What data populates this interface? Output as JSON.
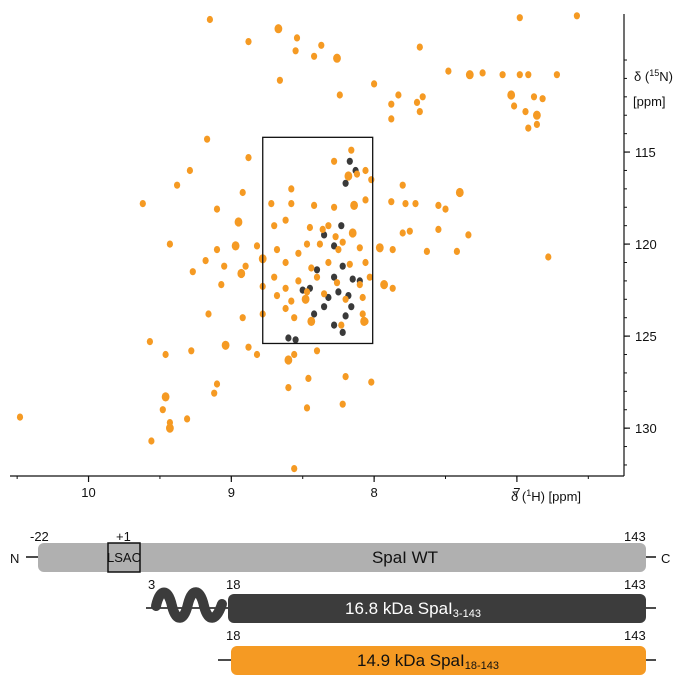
{
  "chart_data": {
    "type": "scatter",
    "title": "",
    "xlabel": "δ (¹H)  [ppm]",
    "ylabel": "δ (¹⁵N) [ppm]",
    "xlim": [
      10.55,
      6.25
    ],
    "ylim": [
      107.5,
      132.6
    ],
    "x_ticks": [
      "10",
      "9",
      "8",
      "7"
    ],
    "y_ticks": [
      "115",
      "120",
      "125",
      "130"
    ],
    "y_reversed": true,
    "x_reversed": true,
    "grid": false,
    "colors": {
      "orange": "#f59a23",
      "dark": "#3a3a3a"
    },
    "highlight_box": {
      "x": [
        8.78,
        8.01
      ],
      "y": [
        114.2,
        125.4
      ]
    },
    "series": [
      {
        "color": "#3a3a3a",
        "points": [
          [
            8.6,
            125.1
          ],
          [
            8.55,
            125.2
          ],
          [
            8.28,
            124.4
          ],
          [
            8.22,
            124.8
          ],
          [
            8.32,
            122.9
          ],
          [
            8.25,
            122.6
          ],
          [
            8.18,
            122.8
          ],
          [
            8.35,
            123.4
          ],
          [
            8.2,
            123.9
          ],
          [
            8.45,
            122.4
          ],
          [
            8.28,
            121.8
          ],
          [
            8.15,
            121.9
          ],
          [
            8.4,
            121.4
          ],
          [
            8.22,
            121.2
          ],
          [
            8.13,
            116.0
          ],
          [
            8.17,
            115.5
          ],
          [
            8.2,
            116.7
          ],
          [
            8.28,
            120.1
          ],
          [
            8.35,
            119.5
          ],
          [
            8.23,
            119.0
          ],
          [
            8.5,
            122.5
          ],
          [
            8.1,
            122.0
          ],
          [
            8.16,
            123.4
          ],
          [
            8.42,
            123.8
          ]
        ]
      },
      {
        "color": "#f59a23",
        "points": [
          [
            6.58,
            107.6
          ],
          [
            6.98,
            107.7
          ],
          [
            9.15,
            107.8
          ],
          [
            8.67,
            108.3
          ],
          [
            8.54,
            108.8
          ],
          [
            8.88,
            109.0
          ],
          [
            8.37,
            109.2
          ],
          [
            7.68,
            109.3
          ],
          [
            8.55,
            109.5
          ],
          [
            8.42,
            109.8
          ],
          [
            8.26,
            109.9
          ],
          [
            7.48,
            110.6
          ],
          [
            7.1,
            110.8
          ],
          [
            6.98,
            110.8
          ],
          [
            6.92,
            110.8
          ],
          [
            6.72,
            110.8
          ],
          [
            7.24,
            110.7
          ],
          [
            7.33,
            110.8
          ],
          [
            8.66,
            111.1
          ],
          [
            8.0,
            111.3
          ],
          [
            8.24,
            111.9
          ],
          [
            7.83,
            111.9
          ],
          [
            7.66,
            112.0
          ],
          [
            7.7,
            112.3
          ],
          [
            7.04,
            111.9
          ],
          [
            7.02,
            112.5
          ],
          [
            6.88,
            112.0
          ],
          [
            6.82,
            112.1
          ],
          [
            7.88,
            112.4
          ],
          [
            7.68,
            112.8
          ],
          [
            6.94,
            112.8
          ],
          [
            6.86,
            113.0
          ],
          [
            6.86,
            113.5
          ],
          [
            6.92,
            113.7
          ],
          [
            7.88,
            113.2
          ],
          [
            9.17,
            114.3
          ],
          [
            8.16,
            114.9
          ],
          [
            8.28,
            115.5
          ],
          [
            8.18,
            116.3
          ],
          [
            8.06,
            116.0
          ],
          [
            8.88,
            115.3
          ],
          [
            9.29,
            116.0
          ],
          [
            9.38,
            116.8
          ],
          [
            8.92,
            117.2
          ],
          [
            8.58,
            117.0
          ],
          [
            7.4,
            117.2
          ],
          [
            9.62,
            117.8
          ],
          [
            9.1,
            118.1
          ],
          [
            8.72,
            117.8
          ],
          [
            8.58,
            117.8
          ],
          [
            8.42,
            117.9
          ],
          [
            8.28,
            118.0
          ],
          [
            8.14,
            117.9
          ],
          [
            8.06,
            117.6
          ],
          [
            7.88,
            117.7
          ],
          [
            7.78,
            117.8
          ],
          [
            7.71,
            117.8
          ],
          [
            7.55,
            117.9
          ],
          [
            7.5,
            118.1
          ],
          [
            8.95,
            118.8
          ],
          [
            8.7,
            119.0
          ],
          [
            8.62,
            118.7
          ],
          [
            8.45,
            119.1
          ],
          [
            8.32,
            119.0
          ],
          [
            8.27,
            119.6
          ],
          [
            8.22,
            119.9
          ],
          [
            8.15,
            119.4
          ],
          [
            7.8,
            119.4
          ],
          [
            7.75,
            119.3
          ],
          [
            7.55,
            119.2
          ],
          [
            7.34,
            119.5
          ],
          [
            9.43,
            120.0
          ],
          [
            9.1,
            120.3
          ],
          [
            8.97,
            120.1
          ],
          [
            8.82,
            120.1
          ],
          [
            8.68,
            120.3
          ],
          [
            8.53,
            120.5
          ],
          [
            8.38,
            120.0
          ],
          [
            8.25,
            120.3
          ],
          [
            8.1,
            120.2
          ],
          [
            7.96,
            120.2
          ],
          [
            7.87,
            120.3
          ],
          [
            7.63,
            120.4
          ],
          [
            7.42,
            120.4
          ],
          [
            6.78,
            120.7
          ],
          [
            9.18,
            120.9
          ],
          [
            9.05,
            121.2
          ],
          [
            8.78,
            120.8
          ],
          [
            8.62,
            121.0
          ],
          [
            8.44,
            121.3
          ],
          [
            8.32,
            121.0
          ],
          [
            8.17,
            121.1
          ],
          [
            8.06,
            121.0
          ],
          [
            9.27,
            121.5
          ],
          [
            8.93,
            121.6
          ],
          [
            8.7,
            121.8
          ],
          [
            8.53,
            122.0
          ],
          [
            8.4,
            121.8
          ],
          [
            8.26,
            122.1
          ],
          [
            8.1,
            122.2
          ],
          [
            8.03,
            121.8
          ],
          [
            7.93,
            122.2
          ],
          [
            9.07,
            122.2
          ],
          [
            8.78,
            122.3
          ],
          [
            8.62,
            122.4
          ],
          [
            8.47,
            122.6
          ],
          [
            8.35,
            122.7
          ],
          [
            8.2,
            123.0
          ],
          [
            8.48,
            123.0
          ],
          [
            8.58,
            123.1
          ],
          [
            8.68,
            122.8
          ],
          [
            8.08,
            122.9
          ],
          [
            7.87,
            122.4
          ],
          [
            8.08,
            123.8
          ],
          [
            8.06,
            124.2
          ],
          [
            8.44,
            124.2
          ],
          [
            8.56,
            124.0
          ],
          [
            9.16,
            123.8
          ],
          [
            8.78,
            123.8
          ],
          [
            8.92,
            124.0
          ],
          [
            8.62,
            123.5
          ],
          [
            9.57,
            125.3
          ],
          [
            9.04,
            125.5
          ],
          [
            8.88,
            125.6
          ],
          [
            9.28,
            125.8
          ],
          [
            8.4,
            125.8
          ],
          [
            8.56,
            126.0
          ],
          [
            9.46,
            126.0
          ],
          [
            8.82,
            126.0
          ],
          [
            8.6,
            126.3
          ],
          [
            8.46,
            127.3
          ],
          [
            8.2,
            127.2
          ],
          [
            8.02,
            127.5
          ],
          [
            9.1,
            127.6
          ],
          [
            8.6,
            127.8
          ],
          [
            9.12,
            128.1
          ],
          [
            9.46,
            128.3
          ],
          [
            8.22,
            128.7
          ],
          [
            8.47,
            128.9
          ],
          [
            9.48,
            129.0
          ],
          [
            9.31,
            129.5
          ],
          [
            10.48,
            129.4
          ],
          [
            9.43,
            129.7
          ],
          [
            9.43,
            130.0
          ],
          [
            9.56,
            130.7
          ],
          [
            8.56,
            132.2
          ],
          [
            7.8,
            116.8
          ],
          [
            8.02,
            116.5
          ],
          [
            8.12,
            116.2
          ],
          [
            8.23,
            124.4
          ],
          [
            8.07,
            124.2
          ],
          [
            8.9,
            121.2
          ],
          [
            8.47,
            120.0
          ],
          [
            8.36,
            119.2
          ]
        ]
      }
    ],
    "construct_labels": {
      "left_start": "-22",
      "plus_one": "+1",
      "end": "143",
      "start3": "3",
      "start18": "18",
      "n_term": "N",
      "c_term": "C",
      "lsac": "LSAC"
    },
    "constructs": [
      {
        "label": "SpaI WT",
        "color": "#b0b0b0",
        "text_color": "#111111"
      },
      {
        "label": "16.8 kDa SpaI",
        "sub": "3-143",
        "color": "#3c3c3c",
        "text_color": "#ffffff"
      },
      {
        "label": "14.9 kDa SpaI",
        "sub": "18-143",
        "color": "#f59a23",
        "text_color": "#111111"
      }
    ]
  }
}
